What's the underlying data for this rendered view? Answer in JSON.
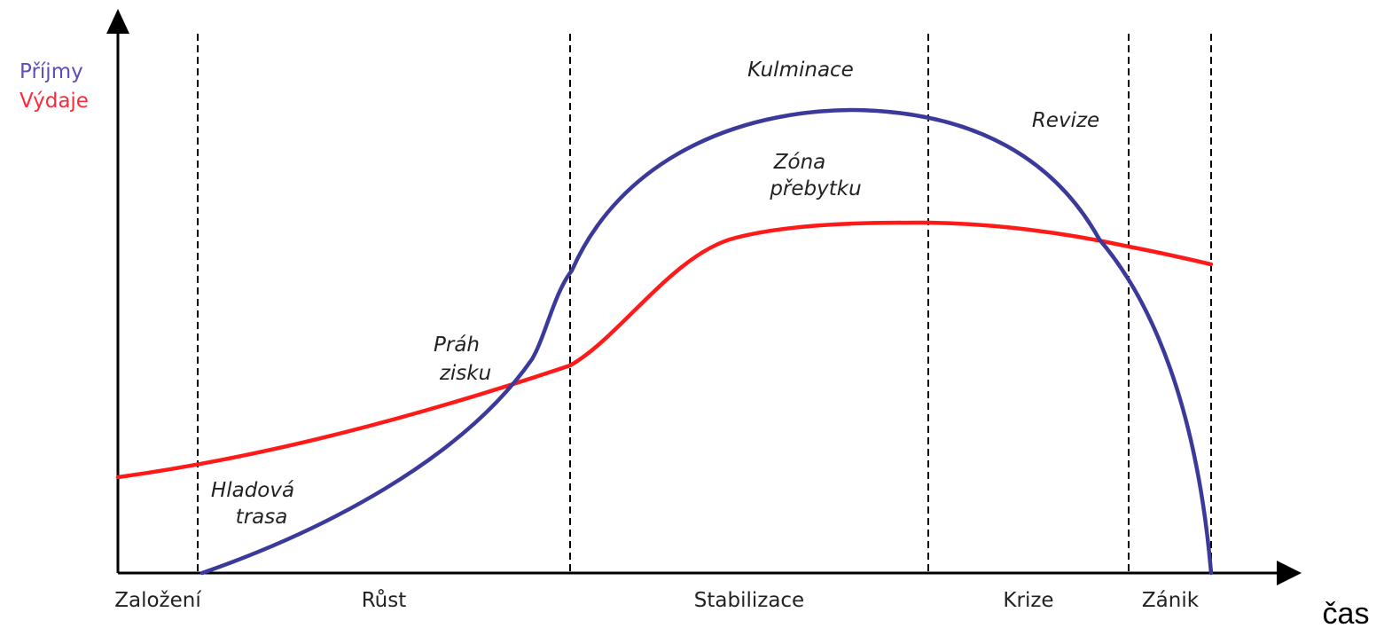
{
  "legend": {
    "income": {
      "label": "Příjmy",
      "color": "#5b4fb8"
    },
    "expenses": {
      "label": "Výdaje",
      "color": "#ff2a3a"
    }
  },
  "series_colors": {
    "income_curve": "#3b3a9b",
    "expenses_curve": "#ff1a1a"
  },
  "x_axis": {
    "label": "čas"
  },
  "stages": [
    "Založení",
    "Růst",
    "Stabilizace",
    "Krize",
    "Zánik"
  ],
  "annotations": {
    "hungry_path": [
      "Hladová",
      "trasa"
    ],
    "profit_threshold": [
      "Práh",
      "zisku"
    ],
    "culmination": "Kulminace",
    "surplus_zone": [
      "Zóna",
      "přebytku"
    ],
    "revision": "Revize"
  }
}
